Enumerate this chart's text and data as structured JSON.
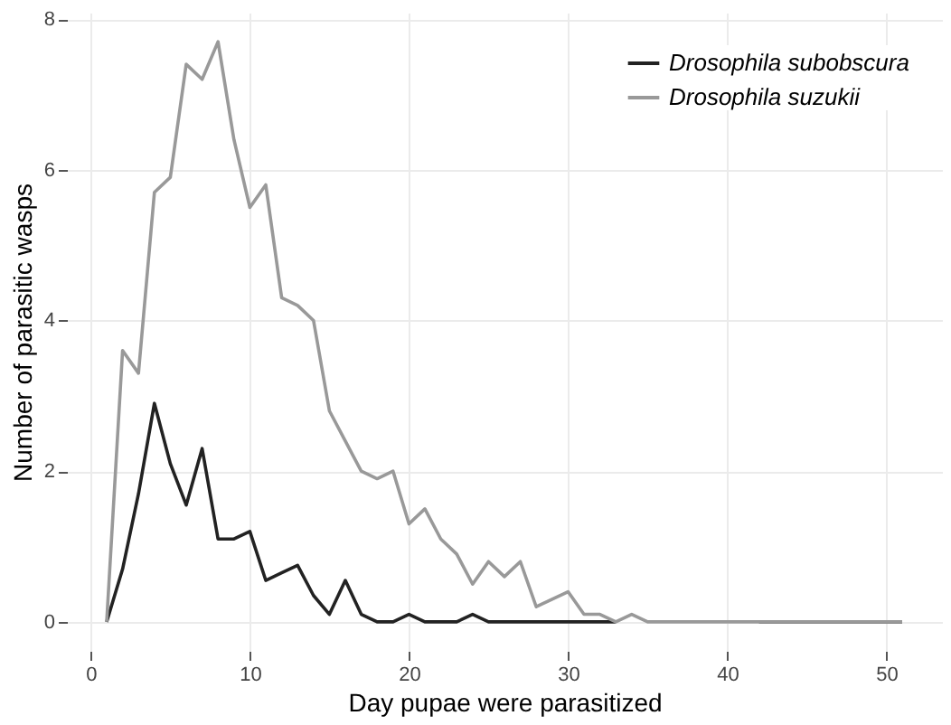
{
  "chart_data": {
    "type": "line",
    "xlabel": "Day pupae were parasitized",
    "ylabel": "Number of parasitic wasps",
    "x": [
      1,
      2,
      3,
      4,
      5,
      6,
      7,
      8,
      9,
      10,
      11,
      12,
      13,
      14,
      15,
      16,
      17,
      18,
      19,
      20,
      21,
      22,
      23,
      24,
      25,
      26,
      27,
      28,
      29,
      30,
      31,
      32,
      33,
      34,
      35,
      36,
      37,
      38,
      39,
      40,
      41,
      42,
      43,
      44,
      45,
      46,
      47,
      48,
      49,
      50,
      51
    ],
    "series": [
      {
        "name": "Drosophila subobscura",
        "color": "#222222",
        "values": [
          0,
          0.7,
          1.7,
          2.9,
          2.1,
          1.55,
          2.3,
          1.1,
          1.1,
          1.2,
          0.55,
          0.65,
          0.75,
          0.35,
          0.1,
          0.55,
          0.1,
          0,
          0,
          0.1,
          0,
          0,
          0,
          0.1,
          0,
          0,
          0,
          0,
          0,
          0,
          0,
          0,
          0,
          null,
          null,
          null,
          null,
          null,
          null,
          null,
          null,
          0,
          0,
          0,
          0,
          0,
          0,
          0,
          0,
          0,
          0
        ]
      },
      {
        "name": "Drosophila suzukii",
        "color": "#999999",
        "values": [
          0,
          3.6,
          3.3,
          5.7,
          5.9,
          7.4,
          7.2,
          7.7,
          6.4,
          5.5,
          5.8,
          4.3,
          4.2,
          4.0,
          2.8,
          2.4,
          2.0,
          1.9,
          2.0,
          1.3,
          1.5,
          1.1,
          0.9,
          0.5,
          0.8,
          0.6,
          0.8,
          0.2,
          0.3,
          0.4,
          0.1,
          0.1,
          0,
          0.1,
          0,
          0,
          0,
          0,
          0,
          0,
          0,
          0,
          0,
          0,
          0,
          0,
          0,
          0,
          0,
          0,
          0
        ]
      }
    ],
    "xlim": [
      -1.5,
      53.5
    ],
    "xticks": [
      0,
      10,
      20,
      30,
      40,
      50
    ],
    "ylim": [
      -0.385,
      8.085
    ],
    "yticks": [
      0,
      2,
      4,
      6,
      8
    ],
    "grid": true,
    "legend": "top right",
    "marker": "none",
    "line_style": "solid"
  }
}
